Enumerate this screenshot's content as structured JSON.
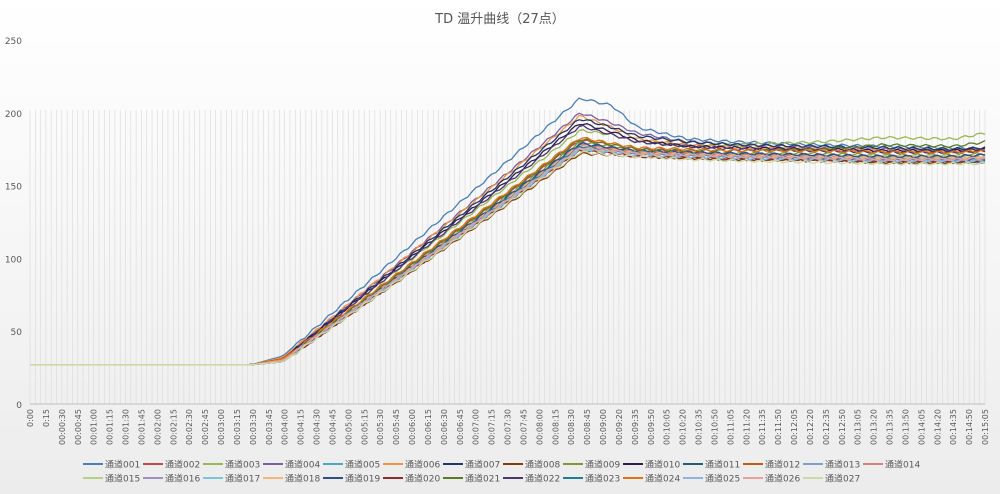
{
  "chart_data": {
    "type": "line",
    "title": "TD 温升曲线（27点）",
    "xlabel": "",
    "ylabel": "",
    "ylim": [
      0,
      250
    ],
    "yticks": [
      0,
      50,
      100,
      150,
      200,
      250
    ],
    "grid": "vertical",
    "legend_position": "bottom",
    "x_tick_labels": [
      "0:00",
      "0:15",
      "00:00:30",
      "00:00:45",
      "00:01:00",
      "00:01:15",
      "00:01:30",
      "00:01:45",
      "00:02:00",
      "00:02:15",
      "00:02:30",
      "00:02:45",
      "00:03:00",
      "00:03:15",
      "00:03:30",
      "00:03:45",
      "00:04:00",
      "00:04:15",
      "00:04:30",
      "00:04:45",
      "00:05:00",
      "00:05:15",
      "00:05:30",
      "00:05:45",
      "00:06:00",
      "00:06:15",
      "00:06:30",
      "00:06:45",
      "00:07:00",
      "00:07:15",
      "00:07:30",
      "00:07:45",
      "00:08:00",
      "00:08:15",
      "00:08:30",
      "00:08:45",
      "00:09:00",
      "00:09:20",
      "00:09:35",
      "00:09:50",
      "00:10:05",
      "00:10:20",
      "00:10:35",
      "00:10:50",
      "00:11:05",
      "00:11:20",
      "00:11:35",
      "00:11:50",
      "00:12:05",
      "00:12:20",
      "00:12:35",
      "00:12:50",
      "00:13:05",
      "00:13:20",
      "00:13:35",
      "00:13:50",
      "00:14:05",
      "00:14:20",
      "00:14:35",
      "00:14:50",
      "00:15:05"
    ],
    "x_minutes": [
      0,
      2,
      3.5,
      4,
      8.7,
      9.2,
      9.6,
      10.4,
      11.2,
      12.5,
      13.5,
      14.6,
      15.1
    ],
    "series": [
      {
        "name": "通道001",
        "color": "#4a7ebb",
        "values": [
          27,
          27,
          27,
          33,
          210,
          205,
          190,
          182,
          180,
          178,
          177,
          176,
          175
        ]
      },
      {
        "name": "通道002",
        "color": "#be4b48",
        "values": [
          27,
          27,
          27,
          30,
          181,
          178,
          175,
          173,
          170,
          168,
          167,
          168,
          167
        ]
      },
      {
        "name": "通道003",
        "color": "#98b954",
        "values": [
          27,
          27,
          27,
          32,
          188,
          185,
          180,
          178,
          178,
          180,
          183,
          182,
          186
        ]
      },
      {
        "name": "通道004",
        "color": "#7d60a0",
        "values": [
          27,
          27,
          27,
          31,
          200,
          193,
          186,
          180,
          178,
          176,
          175,
          174,
          176
        ]
      },
      {
        "name": "通道005",
        "color": "#46aac5",
        "values": [
          27,
          27,
          27,
          30,
          178,
          176,
          173,
          172,
          170,
          169,
          168,
          167,
          166
        ]
      },
      {
        "name": "通道006",
        "color": "#f69240",
        "values": [
          27,
          27,
          27,
          32,
          198,
          190,
          182,
          178,
          176,
          175,
          174,
          173,
          174
        ]
      },
      {
        "name": "通道007",
        "color": "#1f3864",
        "values": [
          27,
          27,
          27,
          31,
          196,
          190,
          184,
          180,
          178,
          177,
          176,
          175,
          176
        ]
      },
      {
        "name": "通道008",
        "color": "#843c0c",
        "values": [
          27,
          27,
          27,
          29,
          172,
          171,
          170,
          169,
          168,
          168,
          166,
          166,
          167
        ]
      },
      {
        "name": "通道009",
        "color": "#7a9a35",
        "values": [
          27,
          27,
          27,
          30,
          180,
          177,
          174,
          172,
          172,
          172,
          171,
          171,
          172
        ]
      },
      {
        "name": "通道010",
        "color": "#2e1c4f",
        "values": [
          27,
          27,
          27,
          31,
          193,
          187,
          181,
          177,
          176,
          175,
          174,
          174,
          175
        ]
      },
      {
        "name": "通道011",
        "color": "#235d75",
        "values": [
          27,
          27,
          27,
          30,
          179,
          176,
          174,
          173,
          172,
          171,
          170,
          170,
          171
        ]
      },
      {
        "name": "通道012",
        "color": "#c55a11",
        "values": [
          27,
          27,
          27,
          30,
          177,
          175,
          173,
          172,
          171,
          170,
          169,
          169,
          170
        ]
      },
      {
        "name": "通道013",
        "color": "#7f9fc8",
        "values": [
          27,
          27,
          27,
          30,
          176,
          174,
          172,
          171,
          170,
          169,
          168,
          168,
          168
        ]
      },
      {
        "name": "通道014",
        "color": "#d97f7d",
        "values": [
          27,
          27,
          27,
          30,
          178,
          175,
          173,
          172,
          171,
          170,
          169,
          169,
          169
        ]
      },
      {
        "name": "通道015",
        "color": "#b7d184",
        "values": [
          27,
          27,
          27,
          30,
          175,
          173,
          172,
          171,
          171,
          170,
          170,
          170,
          170
        ]
      },
      {
        "name": "通道016",
        "color": "#a28fc0",
        "values": [
          27,
          27,
          27,
          30,
          177,
          174,
          172,
          171,
          170,
          169,
          168,
          168,
          168
        ]
      },
      {
        "name": "通道017",
        "color": "#7cc4d8",
        "values": [
          27,
          27,
          27,
          30,
          176,
          173,
          171,
          170,
          169,
          168,
          167,
          167,
          167
        ]
      },
      {
        "name": "通道018",
        "color": "#f9b47c",
        "values": [
          27,
          27,
          27,
          30,
          178,
          175,
          173,
          172,
          171,
          170,
          169,
          169,
          170
        ]
      },
      {
        "name": "通道019",
        "color": "#2f4f8c",
        "values": [
          27,
          27,
          27,
          30,
          179,
          176,
          174,
          173,
          172,
          171,
          170,
          170,
          171
        ]
      },
      {
        "name": "通道020",
        "color": "#8c2d2b",
        "values": [
          27,
          27,
          27,
          29,
          174,
          172,
          170,
          169,
          168,
          167,
          166,
          166,
          166
        ]
      },
      {
        "name": "通道021",
        "color": "#5a7a28",
        "values": [
          27,
          27,
          27,
          30,
          182,
          178,
          175,
          174,
          174,
          175,
          178,
          177,
          180
        ]
      },
      {
        "name": "通道022",
        "color": "#4c3671",
        "values": [
          27,
          27,
          27,
          31,
          191,
          185,
          180,
          177,
          175,
          174,
          173,
          173,
          174
        ]
      },
      {
        "name": "通道023",
        "color": "#1e7e9a",
        "values": [
          27,
          27,
          27,
          30,
          177,
          174,
          172,
          171,
          170,
          169,
          168,
          168,
          168
        ]
      },
      {
        "name": "通道024",
        "color": "#e07014",
        "values": [
          27,
          27,
          27,
          31,
          183,
          179,
          176,
          175,
          174,
          174,
          173,
          173,
          174
        ]
      },
      {
        "name": "通道025",
        "color": "#8fb4de",
        "values": [
          27,
          27,
          27,
          30,
          175,
          173,
          171,
          170,
          169,
          168,
          167,
          167,
          167
        ]
      },
      {
        "name": "通道026",
        "color": "#e7a09e",
        "values": [
          27,
          27,
          27,
          30,
          176,
          174,
          172,
          171,
          170,
          169,
          168,
          168,
          169
        ]
      },
      {
        "name": "通道027",
        "color": "#c9dba2",
        "values": [
          27,
          27,
          27,
          29,
          173,
          171,
          170,
          168,
          167,
          166,
          165,
          165,
          165
        ]
      }
    ]
  }
}
